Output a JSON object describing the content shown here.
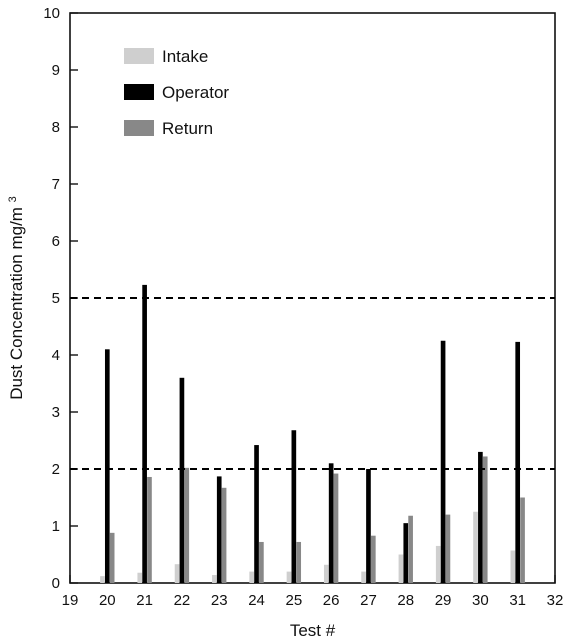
{
  "chart_data": {
    "type": "bar",
    "title": "",
    "xlabel": "Test #",
    "ylabel": "Dust Concentration mg/m",
    "ylabel_superscript": "3",
    "x_ticks": [
      "19",
      "20",
      "21",
      "22",
      "23",
      "24",
      "25",
      "26",
      "27",
      "28",
      "29",
      "30",
      "31",
      "32"
    ],
    "y_ticks": [
      "0",
      "1",
      "2",
      "3",
      "4",
      "5",
      "6",
      "7",
      "8",
      "9",
      "10"
    ],
    "xlim": [
      19,
      32
    ],
    "ylim": [
      0,
      10
    ],
    "grid": false,
    "legend": {
      "placement": "top-left",
      "items": [
        {
          "label": "Intake",
          "color": "#cfcfcf"
        },
        {
          "label": "Operator",
          "color": "#000000"
        },
        {
          "label": "Return",
          "color": "#888888"
        }
      ]
    },
    "categories": [
      20,
      21,
      22,
      23,
      24,
      25,
      26,
      27,
      28,
      29,
      30,
      31
    ],
    "series": [
      {
        "name": "Intake",
        "color": "#cfcfcf",
        "values": [
          0.12,
          0.18,
          0.33,
          0.14,
          0.2,
          0.2,
          0.32,
          0.2,
          0.5,
          0.65,
          1.25,
          0.57
        ]
      },
      {
        "name": "Operator",
        "color": "#000000",
        "values": [
          4.1,
          5.23,
          3.6,
          1.87,
          2.42,
          2.68,
          2.1,
          2.0,
          1.05,
          4.25,
          2.3,
          4.23
        ]
      },
      {
        "name": "Return",
        "color": "#888888",
        "values": [
          0.88,
          1.86,
          2.02,
          1.67,
          0.72,
          0.72,
          1.92,
          0.83,
          1.18,
          1.2,
          2.22,
          1.5
        ]
      }
    ],
    "reference_lines": [
      5,
      2
    ],
    "reference_line_style": "dashed"
  }
}
